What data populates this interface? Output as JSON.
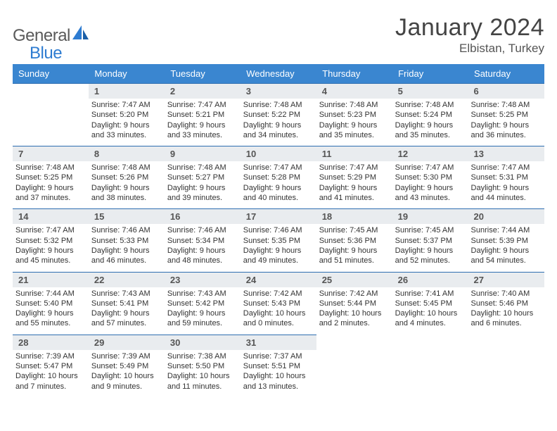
{
  "brand": {
    "part1": "General",
    "part2": "Blue"
  },
  "header": {
    "title": "January 2024",
    "location": "Elbistan, Turkey"
  },
  "colors": {
    "header_bg": "#3a86d0",
    "rule": "#2e6eb0",
    "daynum_bg": "#e9ecef",
    "logo_gray": "#5a5a5a",
    "logo_blue": "#2e7cd1",
    "text": "#333333"
  },
  "dow": [
    "Sunday",
    "Monday",
    "Tuesday",
    "Wednesday",
    "Thursday",
    "Friday",
    "Saturday"
  ],
  "weeks": [
    [
      null,
      {
        "n": "1",
        "l1": "Sunrise: 7:47 AM",
        "l2": "Sunset: 5:20 PM",
        "l3": "Daylight: 9 hours",
        "l4": "and 33 minutes."
      },
      {
        "n": "2",
        "l1": "Sunrise: 7:47 AM",
        "l2": "Sunset: 5:21 PM",
        "l3": "Daylight: 9 hours",
        "l4": "and 33 minutes."
      },
      {
        "n": "3",
        "l1": "Sunrise: 7:48 AM",
        "l2": "Sunset: 5:22 PM",
        "l3": "Daylight: 9 hours",
        "l4": "and 34 minutes."
      },
      {
        "n": "4",
        "l1": "Sunrise: 7:48 AM",
        "l2": "Sunset: 5:23 PM",
        "l3": "Daylight: 9 hours",
        "l4": "and 35 minutes."
      },
      {
        "n": "5",
        "l1": "Sunrise: 7:48 AM",
        "l2": "Sunset: 5:24 PM",
        "l3": "Daylight: 9 hours",
        "l4": "and 35 minutes."
      },
      {
        "n": "6",
        "l1": "Sunrise: 7:48 AM",
        "l2": "Sunset: 5:25 PM",
        "l3": "Daylight: 9 hours",
        "l4": "and 36 minutes."
      }
    ],
    [
      {
        "n": "7",
        "l1": "Sunrise: 7:48 AM",
        "l2": "Sunset: 5:25 PM",
        "l3": "Daylight: 9 hours",
        "l4": "and 37 minutes."
      },
      {
        "n": "8",
        "l1": "Sunrise: 7:48 AM",
        "l2": "Sunset: 5:26 PM",
        "l3": "Daylight: 9 hours",
        "l4": "and 38 minutes."
      },
      {
        "n": "9",
        "l1": "Sunrise: 7:48 AM",
        "l2": "Sunset: 5:27 PM",
        "l3": "Daylight: 9 hours",
        "l4": "and 39 minutes."
      },
      {
        "n": "10",
        "l1": "Sunrise: 7:47 AM",
        "l2": "Sunset: 5:28 PM",
        "l3": "Daylight: 9 hours",
        "l4": "and 40 minutes."
      },
      {
        "n": "11",
        "l1": "Sunrise: 7:47 AM",
        "l2": "Sunset: 5:29 PM",
        "l3": "Daylight: 9 hours",
        "l4": "and 41 minutes."
      },
      {
        "n": "12",
        "l1": "Sunrise: 7:47 AM",
        "l2": "Sunset: 5:30 PM",
        "l3": "Daylight: 9 hours",
        "l4": "and 43 minutes."
      },
      {
        "n": "13",
        "l1": "Sunrise: 7:47 AM",
        "l2": "Sunset: 5:31 PM",
        "l3": "Daylight: 9 hours",
        "l4": "and 44 minutes."
      }
    ],
    [
      {
        "n": "14",
        "l1": "Sunrise: 7:47 AM",
        "l2": "Sunset: 5:32 PM",
        "l3": "Daylight: 9 hours",
        "l4": "and 45 minutes."
      },
      {
        "n": "15",
        "l1": "Sunrise: 7:46 AM",
        "l2": "Sunset: 5:33 PM",
        "l3": "Daylight: 9 hours",
        "l4": "and 46 minutes."
      },
      {
        "n": "16",
        "l1": "Sunrise: 7:46 AM",
        "l2": "Sunset: 5:34 PM",
        "l3": "Daylight: 9 hours",
        "l4": "and 48 minutes."
      },
      {
        "n": "17",
        "l1": "Sunrise: 7:46 AM",
        "l2": "Sunset: 5:35 PM",
        "l3": "Daylight: 9 hours",
        "l4": "and 49 minutes."
      },
      {
        "n": "18",
        "l1": "Sunrise: 7:45 AM",
        "l2": "Sunset: 5:36 PM",
        "l3": "Daylight: 9 hours",
        "l4": "and 51 minutes."
      },
      {
        "n": "19",
        "l1": "Sunrise: 7:45 AM",
        "l2": "Sunset: 5:37 PM",
        "l3": "Daylight: 9 hours",
        "l4": "and 52 minutes."
      },
      {
        "n": "20",
        "l1": "Sunrise: 7:44 AM",
        "l2": "Sunset: 5:39 PM",
        "l3": "Daylight: 9 hours",
        "l4": "and 54 minutes."
      }
    ],
    [
      {
        "n": "21",
        "l1": "Sunrise: 7:44 AM",
        "l2": "Sunset: 5:40 PM",
        "l3": "Daylight: 9 hours",
        "l4": "and 55 minutes."
      },
      {
        "n": "22",
        "l1": "Sunrise: 7:43 AM",
        "l2": "Sunset: 5:41 PM",
        "l3": "Daylight: 9 hours",
        "l4": "and 57 minutes."
      },
      {
        "n": "23",
        "l1": "Sunrise: 7:43 AM",
        "l2": "Sunset: 5:42 PM",
        "l3": "Daylight: 9 hours",
        "l4": "and 59 minutes."
      },
      {
        "n": "24",
        "l1": "Sunrise: 7:42 AM",
        "l2": "Sunset: 5:43 PM",
        "l3": "Daylight: 10 hours",
        "l4": "and 0 minutes."
      },
      {
        "n": "25",
        "l1": "Sunrise: 7:42 AM",
        "l2": "Sunset: 5:44 PM",
        "l3": "Daylight: 10 hours",
        "l4": "and 2 minutes."
      },
      {
        "n": "26",
        "l1": "Sunrise: 7:41 AM",
        "l2": "Sunset: 5:45 PM",
        "l3": "Daylight: 10 hours",
        "l4": "and 4 minutes."
      },
      {
        "n": "27",
        "l1": "Sunrise: 7:40 AM",
        "l2": "Sunset: 5:46 PM",
        "l3": "Daylight: 10 hours",
        "l4": "and 6 minutes."
      }
    ],
    [
      {
        "n": "28",
        "l1": "Sunrise: 7:39 AM",
        "l2": "Sunset: 5:47 PM",
        "l3": "Daylight: 10 hours",
        "l4": "and 7 minutes."
      },
      {
        "n": "29",
        "l1": "Sunrise: 7:39 AM",
        "l2": "Sunset: 5:49 PM",
        "l3": "Daylight: 10 hours",
        "l4": "and 9 minutes."
      },
      {
        "n": "30",
        "l1": "Sunrise: 7:38 AM",
        "l2": "Sunset: 5:50 PM",
        "l3": "Daylight: 10 hours",
        "l4": "and 11 minutes."
      },
      {
        "n": "31",
        "l1": "Sunrise: 7:37 AM",
        "l2": "Sunset: 5:51 PM",
        "l3": "Daylight: 10 hours",
        "l4": "and 13 minutes."
      },
      null,
      null,
      null
    ]
  ]
}
